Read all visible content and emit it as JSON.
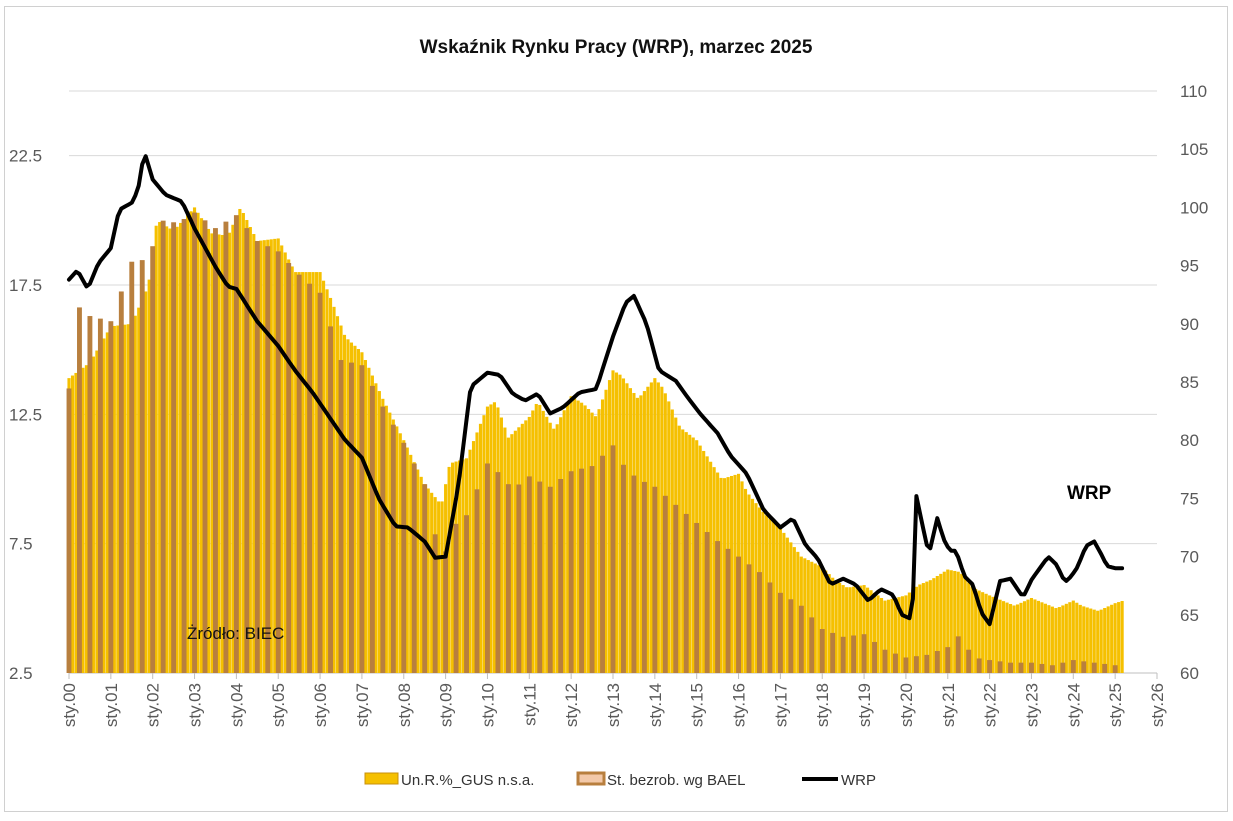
{
  "chart_data": {
    "type": "bar+line",
    "title": "Wskaźnik Rynku Pracy (WRP), marzec 2025",
    "source_note": "Żródło: BIEC",
    "series_label": "WRP",
    "left_axis": {
      "ylim": [
        2.5,
        25
      ],
      "ticks": [
        "2.5",
        "7.5",
        "12.5",
        "17.5",
        "22.5"
      ]
    },
    "right_axis": {
      "ylim": [
        60,
        110
      ],
      "ticks": [
        "60",
        "65",
        "70",
        "75",
        "80",
        "85",
        "90",
        "95",
        "100",
        "105",
        "110"
      ]
    },
    "x_ticks": [
      "sty.00",
      "sty.01",
      "sty.02",
      "sty.03",
      "sty.04",
      "sty.05",
      "sty.06",
      "sty.07",
      "sty.08",
      "sty.09",
      "sty.10",
      "sty.11",
      "sty.12",
      "sty.13",
      "sty.14",
      "sty.15",
      "sty.16",
      "sty.17",
      "sty.18",
      "sty.19",
      "sty.20",
      "sty.21",
      "sty.22",
      "sty.23",
      "sty.24",
      "sty.25",
      "sty.26"
    ],
    "x_range_years": [
      2000,
      2026
    ],
    "grid": "horizontal",
    "legend_position": "bottom",
    "legend": [
      "Un.R.%_GUS n.s.a.",
      "St. bezrob. wg BAEL",
      "WRP"
    ],
    "colors": {
      "gus": "#f5c000",
      "gus_edge": "#c8900c",
      "bael": "#b87f3e",
      "wrp": "#000000",
      "grid": "#d9d9d9"
    },
    "series": [
      {
        "name": "Un.R.%_GUS n.s.a.",
        "axis": "left",
        "frequency": "monthly",
        "x_anchor_years": [
          2000.0,
          2000.5,
          2001.0,
          2001.5,
          2001.9,
          2002.1,
          2002.5,
          2003.0,
          2003.4,
          2003.8,
          2004.1,
          2004.5,
          2005.0,
          2005.4,
          2006.0,
          2006.3,
          2006.6,
          2007.0,
          2007.5,
          2008.0,
          2008.5,
          2008.9,
          2009.1,
          2009.5,
          2010.0,
          2010.2,
          2010.5,
          2011.0,
          2011.2,
          2011.6,
          2012.0,
          2012.3,
          2012.6,
          2013.0,
          2013.2,
          2013.6,
          2014.0,
          2014.2,
          2014.6,
          2015.0,
          2015.2,
          2015.6,
          2016.0,
          2016.2,
          2016.6,
          2017.0,
          2017.5,
          2018.0,
          2018.3,
          2018.6,
          2019.0,
          2019.5,
          2020.0,
          2020.3,
          2020.6,
          2021.0,
          2021.3,
          2021.6,
          2022.0,
          2022.3,
          2022.6,
          2023.0,
          2023.3,
          2023.6,
          2024.0,
          2024.2,
          2024.6,
          2025.0,
          2025.2
        ],
        "anchor_values": [
          13.9,
          14.5,
          15.9,
          16.0,
          17.5,
          20.0,
          19.6,
          20.5,
          19.5,
          19.4,
          20.5,
          19.2,
          19.3,
          18.0,
          18.0,
          16.8,
          15.5,
          14.9,
          13.1,
          11.5,
          9.8,
          9.0,
          10.6,
          10.8,
          12.8,
          13.0,
          11.6,
          12.4,
          13.0,
          11.9,
          13.2,
          12.9,
          12.4,
          14.2,
          14.0,
          13.1,
          13.9,
          13.5,
          12.0,
          11.5,
          11.0,
          10.0,
          10.2,
          9.5,
          8.7,
          8.1,
          7.0,
          6.6,
          6.1,
          5.8,
          5.9,
          5.3,
          5.5,
          5.9,
          6.1,
          6.5,
          6.4,
          5.8,
          5.5,
          5.3,
          5.1,
          5.4,
          5.2,
          5.0,
          5.3,
          5.1,
          4.9,
          5.2,
          5.3
        ]
      },
      {
        "name": "St. bezrob. wg BAEL",
        "axis": "left",
        "frequency": "quarterly",
        "x_anchor_years": [
          2000.0,
          2000.2,
          2000.5,
          2001.0,
          2001.5,
          2001.9,
          2002.2,
          2002.6,
          2003.0,
          2003.5,
          2004.0,
          2004.5,
          2005.0,
          2005.5,
          2006.0,
          2006.5,
          2007.0,
          2007.5,
          2008.0,
          2008.5,
          2008.9,
          2009.2,
          2009.5,
          2010.0,
          2010.3,
          2010.6,
          2011.0,
          2011.5,
          2012.0,
          2012.5,
          2013.0,
          2013.3,
          2013.6,
          2014.0,
          2014.5,
          2015.0,
          2015.5,
          2016.0,
          2016.5,
          2017.0,
          2017.5,
          2018.0,
          2018.5,
          2019.0,
          2019.5,
          2020.0,
          2020.5,
          2021.0,
          2021.3,
          2021.6,
          2022.0,
          2022.5,
          2023.0,
          2023.5,
          2024.0,
          2024.5,
          2025.0
        ],
        "anchor_values": [
          13.5,
          16.7,
          16.3,
          16.1,
          18.4,
          18.5,
          20.0,
          19.9,
          20.3,
          19.7,
          20.2,
          19.2,
          18.8,
          17.9,
          17.2,
          14.6,
          14.4,
          12.8,
          11.4,
          9.8,
          6.7,
          8.2,
          8.6,
          10.6,
          10.2,
          9.6,
          10.1,
          9.7,
          10.3,
          10.5,
          11.3,
          10.4,
          10.0,
          9.7,
          9.0,
          8.3,
          7.6,
          7.0,
          6.4,
          5.6,
          5.1,
          4.2,
          3.9,
          4.0,
          3.4,
          3.1,
          3.2,
          3.5,
          4.0,
          3.1,
          3.0,
          2.9,
          2.9,
          2.8,
          3.0,
          2.9,
          2.8
        ]
      },
      {
        "name": "WRP",
        "axis": "right",
        "frequency": "monthly",
        "x_anchor_years": [
          2000.0,
          2000.2,
          2000.45,
          2000.7,
          2001.0,
          2001.2,
          2001.5,
          2001.65,
          2001.8,
          2002.0,
          2002.3,
          2002.7,
          2003.0,
          2003.5,
          2003.8,
          2004.0,
          2004.5,
          2005.0,
          2005.4,
          2005.8,
          2006.2,
          2006.6,
          2007.0,
          2007.4,
          2007.8,
          2008.1,
          2008.5,
          2008.75,
          2009.0,
          2009.3,
          2009.6,
          2010.0,
          2010.3,
          2010.6,
          2010.9,
          2011.2,
          2011.5,
          2011.8,
          2012.2,
          2012.6,
          2013.0,
          2013.3,
          2013.5,
          2013.8,
          2014.1,
          2014.5,
          2014.8,
          2015.1,
          2015.5,
          2015.8,
          2016.2,
          2016.6,
          2017.0,
          2017.3,
          2017.6,
          2017.9,
          2018.2,
          2018.5,
          2018.8,
          2019.1,
          2019.4,
          2019.7,
          2019.9,
          2020.15,
          2020.25,
          2020.4,
          2020.55,
          2020.75,
          2020.9,
          2021.05,
          2021.2,
          2021.4,
          2021.6,
          2021.8,
          2022.0,
          2022.25,
          2022.5,
          2022.8,
          2023.0,
          2023.2,
          2023.4,
          2023.6,
          2023.8,
          2023.95,
          2024.1,
          2024.3,
          2024.5,
          2024.7,
          2024.8,
          2025.0,
          2025.2
        ],
        "anchor_values": [
          93.8,
          94.6,
          93.0,
          95.2,
          96.5,
          99.8,
          100.4,
          101.5,
          104.8,
          102.4,
          101.1,
          100.5,
          98.2,
          94.9,
          93.2,
          93.0,
          90.2,
          88.1,
          86.0,
          84.2,
          82.1,
          80.0,
          78.5,
          75.0,
          72.6,
          72.5,
          71.3,
          69.9,
          70.0,
          76.0,
          84.6,
          85.8,
          85.6,
          84.0,
          83.4,
          84.0,
          82.3,
          82.8,
          84.1,
          84.4,
          88.9,
          91.8,
          92.4,
          90.0,
          86.0,
          85.1,
          83.6,
          82.2,
          80.6,
          78.7,
          77.1,
          74.0,
          72.5,
          73.3,
          71.0,
          69.8,
          67.6,
          68.1,
          67.6,
          66.2,
          67.2,
          66.7,
          65.0,
          64.6,
          75.2,
          72.6,
          70.2,
          73.3,
          71.5,
          70.5,
          70.5,
          68.3,
          67.6,
          65.2,
          64.2,
          67.9,
          68.1,
          66.5,
          68.0,
          69.0,
          70.0,
          69.3,
          67.8,
          68.3,
          69.1,
          70.9,
          71.3,
          70.0,
          69.2,
          69.0,
          69.0
        ]
      }
    ]
  }
}
